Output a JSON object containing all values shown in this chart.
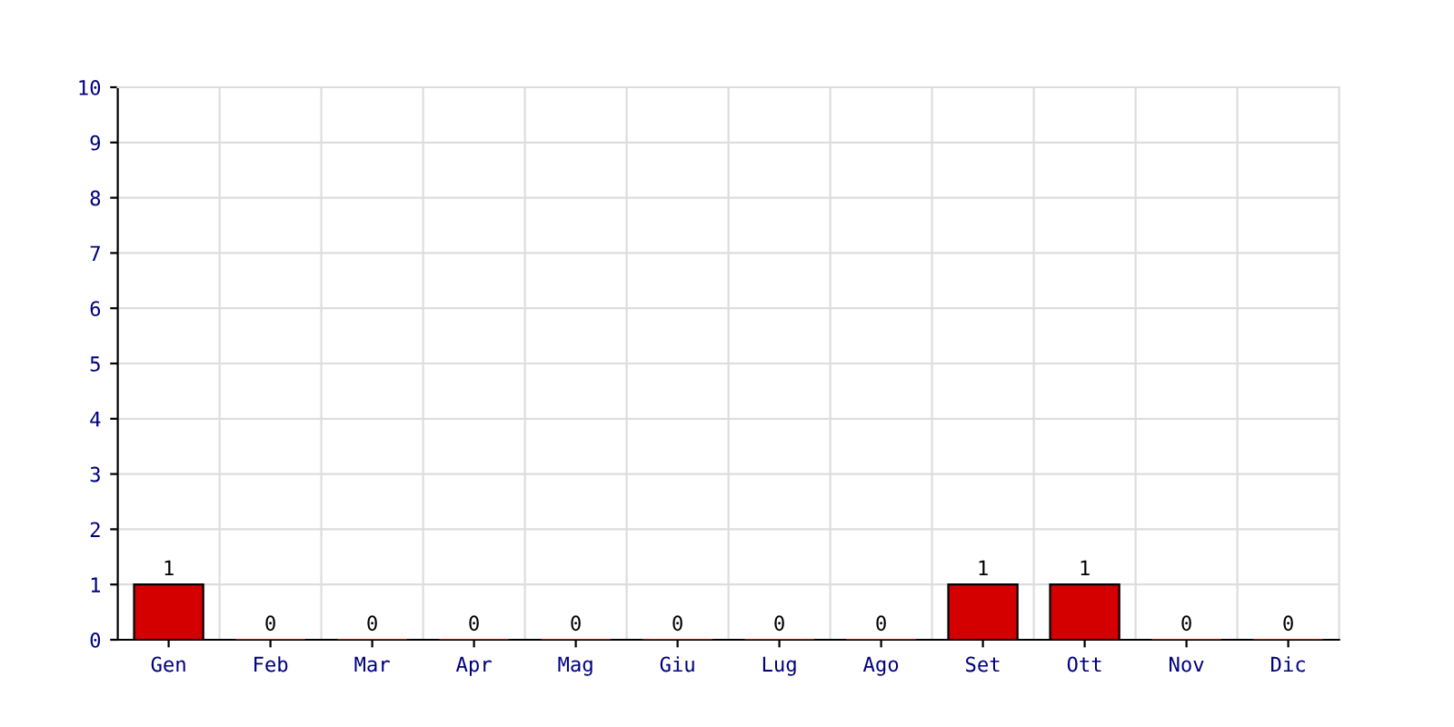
{
  "chart_data": {
    "type": "bar",
    "categories": [
      "Gen",
      "Feb",
      "Mar",
      "Apr",
      "Mag",
      "Giu",
      "Lug",
      "Ago",
      "Set",
      "Ott",
      "Nov",
      "Dic"
    ],
    "values": [
      1,
      0,
      0,
      0,
      0,
      0,
      0,
      0,
      1,
      1,
      0,
      0
    ],
    "color": "#d40000",
    "ylim": [
      0,
      10
    ],
    "yticks": [
      0,
      1,
      2,
      3,
      4,
      5,
      6,
      7,
      8,
      9,
      10
    ],
    "grid": true,
    "data_labels": true
  }
}
